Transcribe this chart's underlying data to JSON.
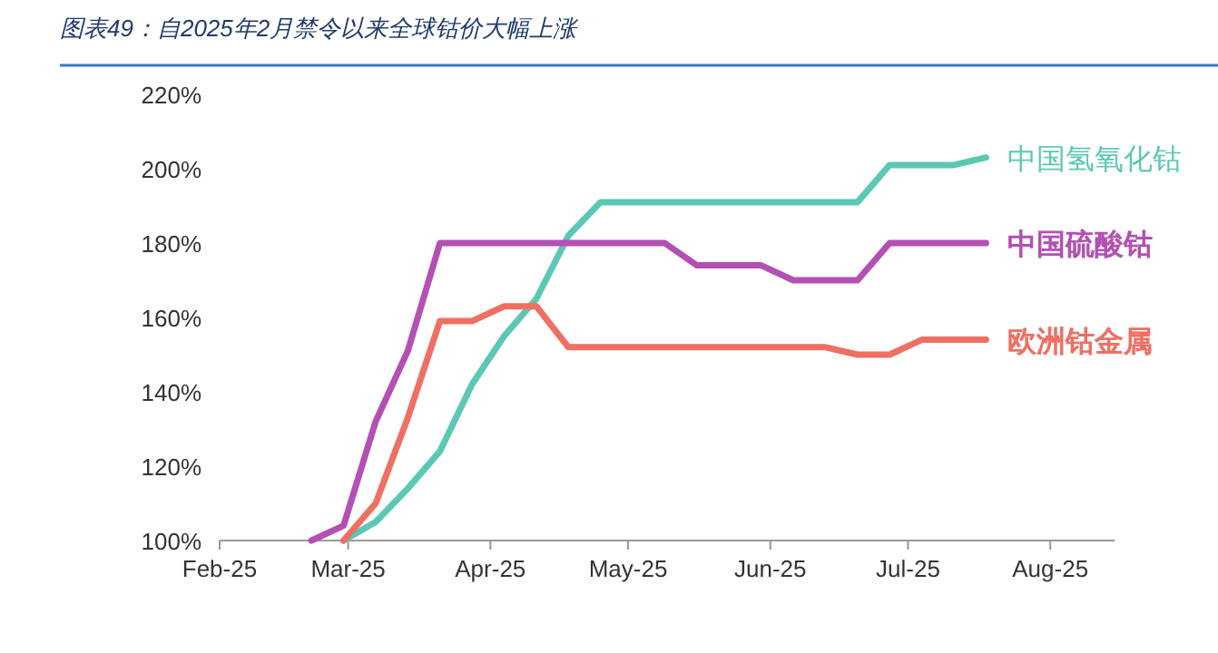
{
  "chart_data": {
    "type": "line",
    "title": "图表49：自2025年2月禁令以来全球钴价大幅上涨",
    "x": [
      "2025-02-21",
      "2025-02-28",
      "2025-03-07",
      "2025-03-14",
      "2025-03-21",
      "2025-03-28",
      "2025-04-04",
      "2025-04-11",
      "2025-04-18",
      "2025-04-25",
      "2025-05-02",
      "2025-05-09",
      "2025-05-16",
      "2025-05-23",
      "2025-05-30",
      "2025-06-06",
      "2025-06-13",
      "2025-06-20",
      "2025-06-27",
      "2025-07-04",
      "2025-07-11",
      "2025-07-18"
    ],
    "series": [
      {
        "name": "中国氢氧化钴",
        "color": "#5bc8b4",
        "values": [
          null,
          100,
          105,
          114,
          124,
          142,
          155,
          165,
          182,
          191,
          191,
          191,
          191,
          191,
          191,
          191,
          191,
          191,
          201,
          201,
          201,
          203
        ]
      },
      {
        "name": "中国硫酸钴",
        "color": "#b44fb4",
        "values": [
          100,
          104,
          132,
          151,
          180,
          180,
          180,
          180,
          180,
          180,
          180,
          180,
          174,
          174,
          174,
          170,
          170,
          170,
          180,
          180,
          180,
          180
        ]
      },
      {
        "name": "欧洲钴金属",
        "color": "#ef6f63",
        "values": [
          null,
          100,
          110,
          133,
          159,
          159,
          163,
          163,
          152,
          152,
          152,
          152,
          152,
          152,
          152,
          152,
          152,
          150,
          150,
          154,
          154,
          154
        ]
      }
    ],
    "xlim": [
      "2025-02-01",
      "2025-08-15"
    ],
    "xticks": [
      {
        "value": "2025-02-01",
        "label": "Feb-25"
      },
      {
        "value": "2025-03-01",
        "label": "Mar-25"
      },
      {
        "value": "2025-04-01",
        "label": "Apr-25"
      },
      {
        "value": "2025-05-01",
        "label": "May-25"
      },
      {
        "value": "2025-06-01",
        "label": "Jun-25"
      },
      {
        "value": "2025-07-01",
        "label": "Jul-25"
      },
      {
        "value": "2025-08-01",
        "label": "Aug-25"
      }
    ],
    "ylim": [
      100,
      220
    ],
    "yticks": [
      {
        "value": 100,
        "label": "100%"
      },
      {
        "value": 120,
        "label": "120%"
      },
      {
        "value": 140,
        "label": "140%"
      },
      {
        "value": 160,
        "label": "160%"
      },
      {
        "value": 180,
        "label": "180%"
      },
      {
        "value": 200,
        "label": "200%"
      },
      {
        "value": 220,
        "label": "220%"
      }
    ],
    "grid": false,
    "legend": false,
    "marker": "none",
    "line_style": "solid"
  }
}
